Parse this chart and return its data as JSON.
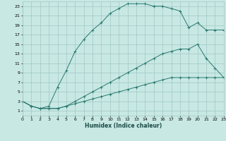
{
  "xlabel": "Humidex (Indice chaleur)",
  "background_color": "#c8e8e4",
  "grid_color": "#a0c8c4",
  "line_color": "#2a7a6f",
  "xlim": [
    0,
    23
  ],
  "ylim": [
    0,
    24
  ],
  "xticks": [
    0,
    1,
    2,
    3,
    4,
    5,
    6,
    7,
    8,
    9,
    10,
    11,
    12,
    13,
    14,
    15,
    16,
    17,
    18,
    19,
    20,
    21,
    22,
    23
  ],
  "yticks": [
    1,
    3,
    5,
    7,
    9,
    11,
    13,
    15,
    17,
    19,
    21,
    23
  ],
  "series1_x": [
    0,
    1,
    2,
    3,
    4,
    5,
    6,
    7,
    8,
    9,
    10,
    11,
    12,
    13,
    14,
    15,
    16,
    17,
    18,
    19,
    20,
    21,
    22,
    23
  ],
  "series1_y": [
    3,
    2,
    1.5,
    1.5,
    1.5,
    2,
    2.5,
    3,
    3.5,
    4,
    4.5,
    5,
    5.5,
    6,
    6.5,
    7,
    7.5,
    8,
    8,
    8,
    8,
    8,
    8,
    8
  ],
  "series2_x": [
    0,
    1,
    2,
    3,
    4,
    5,
    6,
    7,
    8,
    9,
    10,
    11,
    12,
    13,
    14,
    15,
    16,
    17,
    18,
    19,
    20,
    21,
    22,
    23
  ],
  "series2_y": [
    3,
    2,
    1.5,
    1.5,
    1.5,
    2,
    3,
    4,
    5,
    6,
    7,
    8,
    9,
    10,
    11,
    12,
    13,
    13.5,
    14,
    14,
    15,
    12,
    10,
    8
  ],
  "series3_x": [
    0,
    1,
    2,
    3,
    4,
    5,
    6,
    7,
    8,
    9,
    10,
    11,
    12,
    13,
    14,
    15,
    16,
    17,
    18,
    19,
    20,
    21,
    22,
    23
  ],
  "series3_y": [
    3,
    2,
    1.5,
    2,
    6,
    9.5,
    13.5,
    16,
    18,
    19.5,
    21.5,
    22.5,
    23.5,
    23.5,
    23.5,
    23,
    23,
    22.5,
    22,
    18.5,
    19.5,
    18,
    18,
    18
  ]
}
